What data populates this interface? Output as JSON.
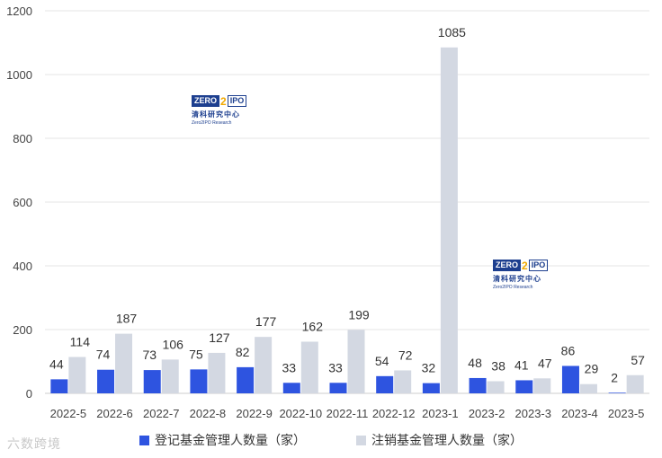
{
  "chart_data": {
    "type": "bar",
    "categories": [
      "2022-5",
      "2022-6",
      "2022-7",
      "2022-8",
      "2022-9",
      "2022-10",
      "2022-11",
      "2022-12",
      "2023-1",
      "2023-2",
      "2023-3",
      "2023-4",
      "2023-5"
    ],
    "series": [
      {
        "name": "登记基金管理人数量（家）",
        "color": "#2e54e0",
        "values": [
          44,
          74,
          73,
          75,
          82,
          33,
          33,
          54,
          32,
          48,
          41,
          86,
          2
        ]
      },
      {
        "name": "注销基金管理人数量（家）",
        "color": "#d3d8e2",
        "values": [
          114,
          187,
          106,
          127,
          177,
          162,
          199,
          72,
          1085,
          38,
          47,
          29,
          57
        ]
      }
    ],
    "yticks": [
      0,
      200,
      400,
      600,
      800,
      1000,
      1200
    ],
    "ylim": [
      0,
      1200
    ],
    "grid": true,
    "legend_position": "bottom"
  },
  "logo": {
    "mark_zero": "ZERO",
    "mark_two": "2",
    "mark_ipo": "IPO",
    "name_cn": "清科研究中心",
    "name_en": "Zero2IPO Research"
  },
  "watermark": "六数跨境"
}
